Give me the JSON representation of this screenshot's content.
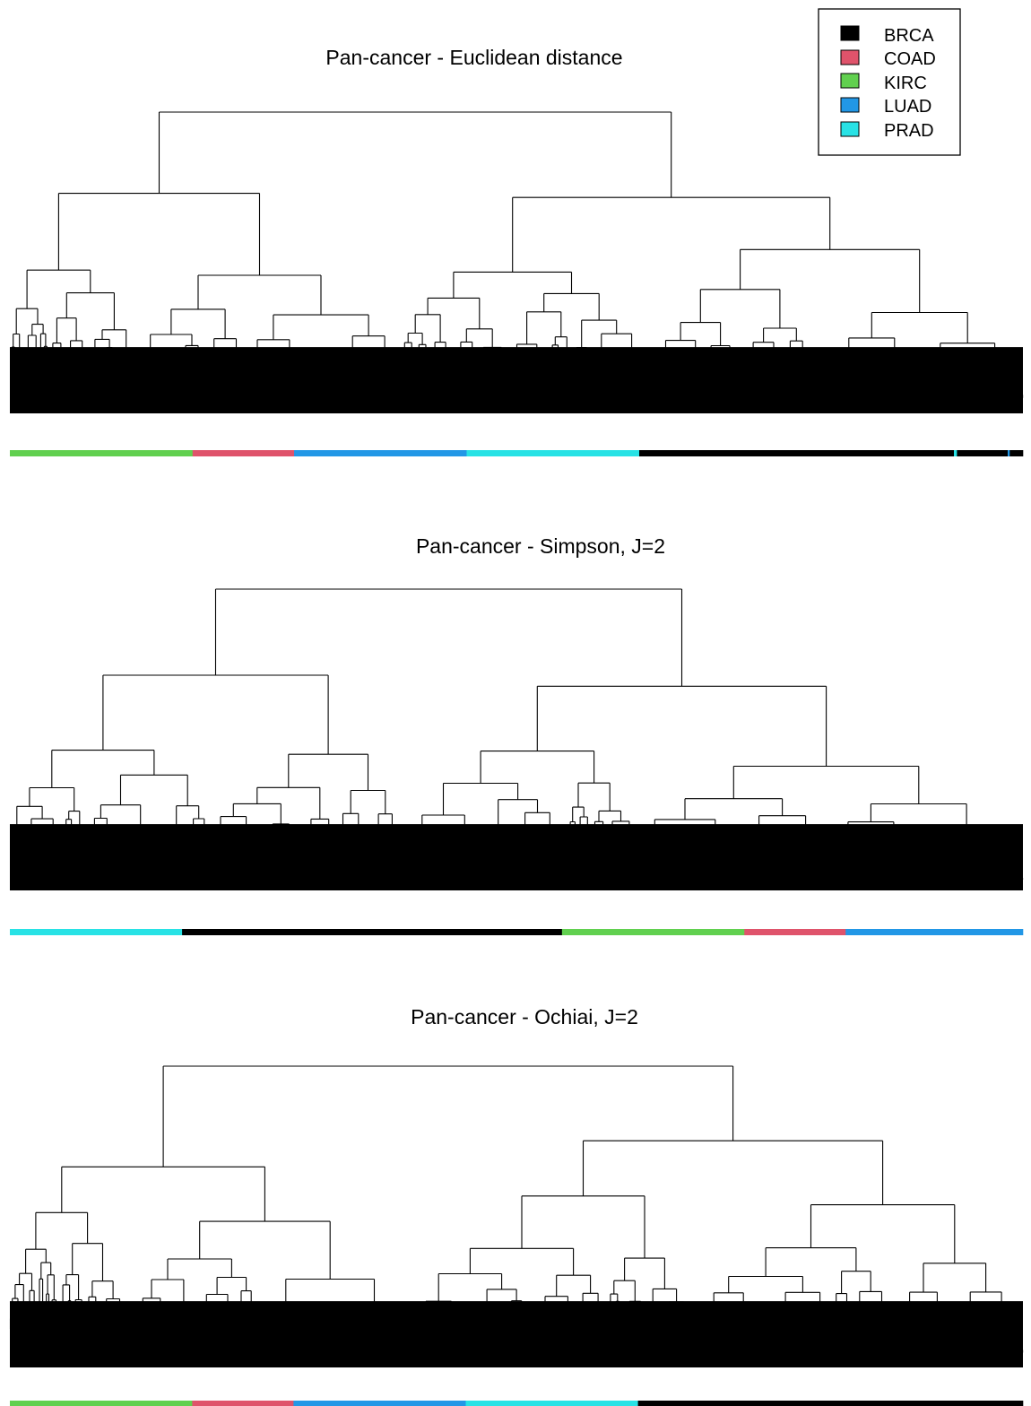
{
  "legend": {
    "items": [
      {
        "label": "BRCA",
        "color": "#000000"
      },
      {
        "label": "COAD",
        "color": "#DF536B"
      },
      {
        "label": "KIRC",
        "color": "#61D04F"
      },
      {
        "label": "LUAD",
        "color": "#2297E6"
      },
      {
        "label": "PRAD",
        "color": "#28E2E5"
      }
    ]
  },
  "panels": [
    {
      "title": "Pan-cancer - Euclidean distance",
      "strip": [
        {
          "group": "KIRC",
          "fraction": 0.18
        },
        {
          "group": "COAD",
          "fraction": 0.1
        },
        {
          "group": "LUAD",
          "fraction": 0.17
        },
        {
          "group": "PRAD",
          "fraction": 0.17
        },
        {
          "group": "BRCA",
          "fraction": 0.31
        },
        {
          "group": "PRAD",
          "fraction": 0.003
        },
        {
          "group": "BRCA",
          "fraction": 0.05
        },
        {
          "group": "LUAD",
          "fraction": 0.002
        },
        {
          "group": "BRCA",
          "fraction": 0.013
        }
      ]
    },
    {
      "title": "Pan-cancer - Simpson, J=2",
      "strip": [
        {
          "group": "PRAD",
          "fraction": 0.17
        },
        {
          "group": "BRCA",
          "fraction": 0.375
        },
        {
          "group": "KIRC",
          "fraction": 0.18
        },
        {
          "group": "COAD",
          "fraction": 0.1
        },
        {
          "group": "LUAD",
          "fraction": 0.175
        }
      ]
    },
    {
      "title": "Pan-cancer - Ochiai, J=2",
      "strip": [
        {
          "group": "KIRC",
          "fraction": 0.18
        },
        {
          "group": "COAD",
          "fraction": 0.1
        },
        {
          "group": "LUAD",
          "fraction": 0.17
        },
        {
          "group": "PRAD",
          "fraction": 0.17
        },
        {
          "group": "BRCA",
          "fraction": 0.38
        }
      ]
    }
  ]
}
